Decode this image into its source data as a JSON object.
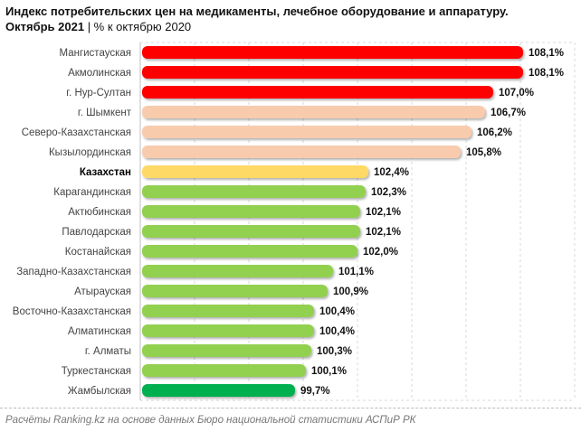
{
  "title": "Индекс потребительских цен на медикаменты, лечебное оборудование и аппаратуру.",
  "subtitle_bold": "Октябрь 2021",
  "subtitle_rest": " | % к октябрю 2020",
  "source": "Расчёты Ranking.kz на основе данных Бюро национальной статистики АСПиР РК",
  "chart_data": {
    "type": "bar",
    "orientation": "horizontal",
    "categories": [
      "Мангистауская",
      "Акмолинская",
      "г. Нур-Султан",
      "г. Шымкент",
      "Северо-Казахстанская",
      "Кызылординская",
      "Казахстан",
      "Карагандинская",
      "Актюбинская",
      "Павлодарская",
      "Костанайская",
      "Западно-Казахстанская",
      "Атырауская",
      "Восточно-Казахстанская",
      "Алматинская",
      "г. Алматы",
      "Туркестанская",
      "Жамбылская"
    ],
    "values": [
      108.1,
      108.1,
      107.0,
      106.7,
      106.2,
      105.8,
      102.4,
      102.3,
      102.1,
      102.1,
      102.0,
      101.1,
      100.9,
      100.4,
      100.4,
      100.3,
      100.1,
      99.7
    ],
    "labels": [
      "108,1%",
      "108,1%",
      "107,0%",
      "106,7%",
      "106,2%",
      "105,8%",
      "102,4%",
      "102,3%",
      "102,1%",
      "102,1%",
      "102,0%",
      "101,1%",
      "100,9%",
      "100,4%",
      "100,4%",
      "100,3%",
      "100,1%",
      "99,7%"
    ],
    "colors": [
      "#ff0000",
      "#ff0000",
      "#ff0000",
      "#f8cbad",
      "#f8cbad",
      "#f8cbad",
      "#ffd966",
      "#92d050",
      "#92d050",
      "#92d050",
      "#92d050",
      "#92d050",
      "#92d050",
      "#92d050",
      "#92d050",
      "#92d050",
      "#92d050",
      "#00b050"
    ],
    "highlight": "Казахстан",
    "xlim": [
      94,
      110
    ],
    "grid": true
  }
}
